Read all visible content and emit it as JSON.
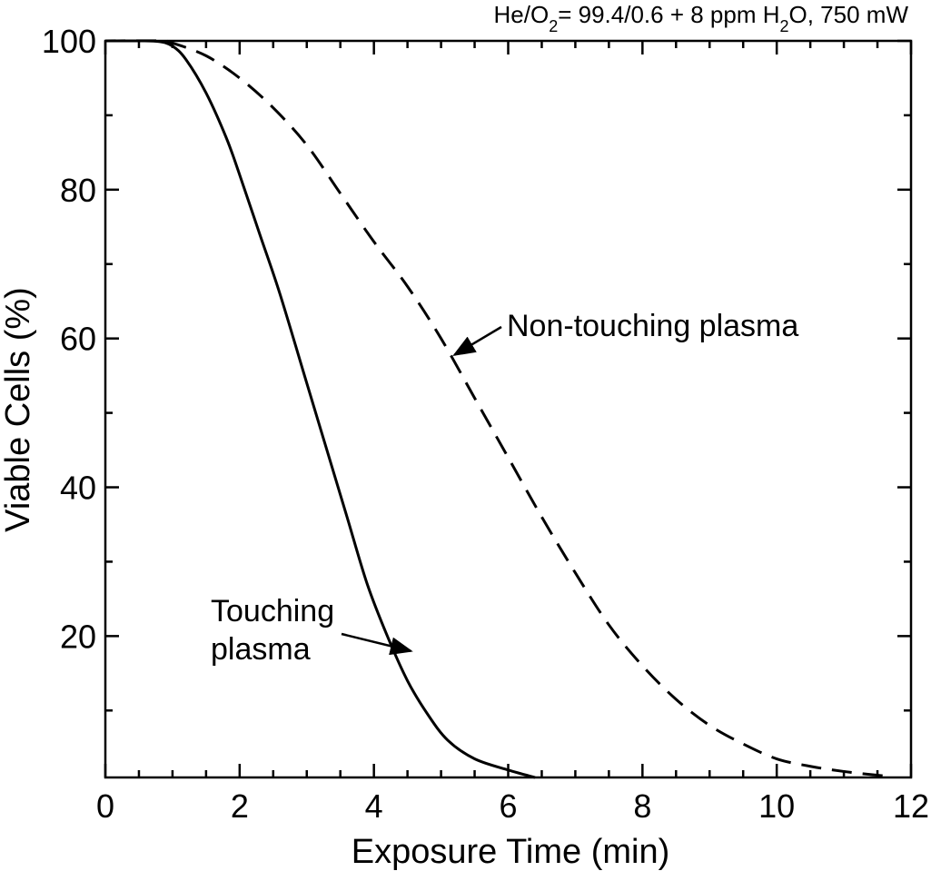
{
  "chart_data": {
    "type": "line",
    "title_parts": [
      {
        "text": "He/O",
        "sub": false
      },
      {
        "text": "2",
        "sub": true
      },
      {
        "text": "= 99.4/0.6 + 8 ppm H",
        "sub": false
      },
      {
        "text": "2",
        "sub": true
      },
      {
        "text": "O, 750 mW",
        "sub": false
      }
    ],
    "xlabel": "Exposure Time (min)",
    "ylabel": "Viable Cells (%)",
    "xlim": [
      0,
      12
    ],
    "ylim": [
      1,
      100
    ],
    "xticks": [
      0,
      2,
      4,
      6,
      8,
      10,
      12
    ],
    "yticks": [
      20,
      40,
      60,
      80,
      100
    ],
    "grid": false,
    "series": [
      {
        "name": "Touching plasma",
        "style": "solid",
        "color": "#000000",
        "x": [
          0,
          0.5,
          0.8,
          1.0,
          1.2,
          1.5,
          1.8,
          2.0,
          2.3,
          2.6,
          3.0,
          3.3,
          3.6,
          3.9,
          4.2,
          4.5,
          4.8,
          5.1,
          5.5,
          6.0,
          6.4
        ],
        "y": [
          100,
          100,
          99.9,
          99.3,
          97.5,
          93,
          87,
          82,
          74,
          66,
          54,
          45,
          36,
          27,
          20,
          14,
          9.5,
          6,
          3.5,
          2,
          1
        ]
      },
      {
        "name": "Non-touching plasma",
        "style": "dashed",
        "color": "#000000",
        "x": [
          0,
          0.8,
          1.0,
          1.5,
          2.0,
          2.5,
          3.0,
          3.5,
          4.0,
          4.5,
          5.0,
          5.5,
          6.0,
          6.5,
          7.0,
          7.5,
          8.0,
          8.5,
          9.0,
          9.5,
          10.0,
          10.5,
          11.0,
          11.6
        ],
        "y": [
          100,
          100,
          99.7,
          98,
          95,
          91,
          86,
          79.5,
          73,
          67,
          60,
          52,
          44,
          36,
          28.5,
          21.5,
          16,
          11.5,
          8,
          5.5,
          3.5,
          2.5,
          1.8,
          1.2
        ]
      }
    ],
    "annotations": [
      {
        "lines": [
          "Non-touching plasma"
        ],
        "points_to": {
          "x": 5.2,
          "y": 57.8
        }
      },
      {
        "lines": [
          "Touching",
          "plasma"
        ],
        "points_to": {
          "x": 4.55,
          "y": 18
        }
      }
    ]
  }
}
